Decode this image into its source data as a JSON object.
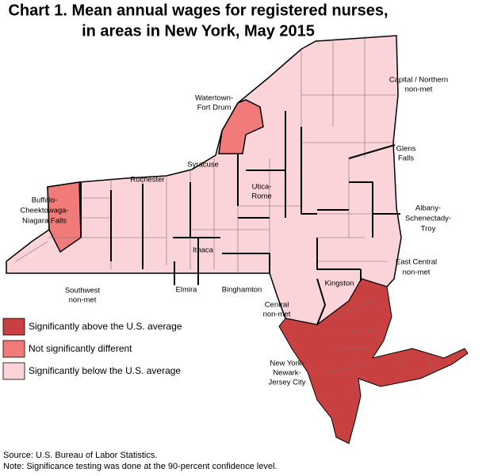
{
  "title_lines": [
    "Chart 1. Mean annual wages for registered nurses,",
    "in areas in New York, May 2015"
  ],
  "legend": [
    {
      "label": "Significantly above the U.S. average",
      "color": "#c8403f",
      "areas": [
        {
          "lines": [
            "New York-",
            "Newark-",
            "Jersey City"
          ]
        }
      ]
    },
    {
      "label": "Not significantly different",
      "color": "#f07b78",
      "areas": [
        {
          "lines": [
            "Watertown-",
            "Fort Drum"
          ]
        },
        {
          "lines": [
            "Buffalo-",
            "Cheektowaga-",
            "Niagara Falls"
          ]
        }
      ]
    },
    {
      "label": "Significantly below the U.S. average",
      "color": "#fad4d8",
      "areas": [
        {
          "lines": [
            "Capital / Northern",
            "non-met"
          ]
        },
        {
          "lines": [
            "Glens",
            "Falls"
          ]
        },
        {
          "lines": [
            "Syracuse"
          ]
        },
        {
          "lines": [
            "Rochester"
          ]
        },
        {
          "lines": [
            "Utica-",
            "Rome"
          ]
        },
        {
          "lines": [
            "Albany-",
            "Schenectady-",
            "Troy"
          ]
        },
        {
          "lines": [
            "East Central",
            "non-met"
          ]
        },
        {
          "lines": [
            "Ithaca"
          ]
        },
        {
          "lines": [
            "Elmira"
          ]
        },
        {
          "lines": [
            "Binghamton"
          ]
        },
        {
          "lines": [
            "Kingston"
          ]
        },
        {
          "lines": [
            "Southwest",
            "non-met"
          ]
        },
        {
          "lines": [
            "Central",
            "non-met"
          ]
        }
      ]
    }
  ],
  "source": "Source: U.S. Bureau of Labor Statistics.",
  "note": "Note: Significance testing was done at the 90-percent confidence level."
}
